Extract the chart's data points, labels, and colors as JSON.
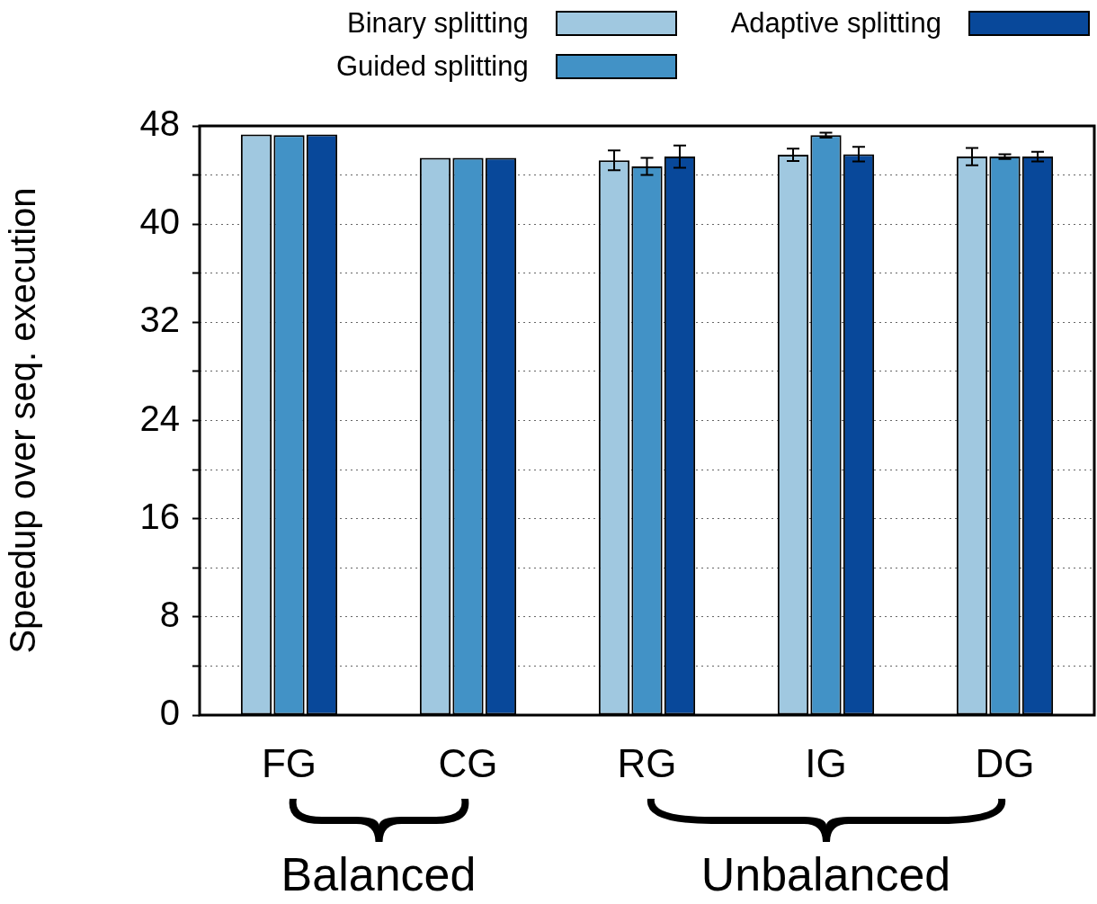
{
  "chart_data": {
    "type": "bar",
    "ylabel": "Speedup over seq. execution",
    "categories": [
      "FG",
      "CG",
      "RG",
      "IG",
      "DG"
    ],
    "series": [
      {
        "name": "Binary splitting",
        "color": "#a0c8e0",
        "values": [
          47.3,
          45.4,
          45.2,
          45.65,
          45.5
        ],
        "errors": [
          null,
          null,
          0.8,
          0.5,
          0.7
        ]
      },
      {
        "name": "Guided splitting",
        "color": "#4292c6",
        "values": [
          47.25,
          45.4,
          44.7,
          47.25,
          45.5
        ],
        "errors": [
          null,
          null,
          0.7,
          0.2,
          0.2
        ]
      },
      {
        "name": "Adaptive splitting",
        "color": "#08489a",
        "values": [
          47.3,
          45.4,
          45.5,
          45.7,
          45.5
        ],
        "errors": [
          null,
          null,
          0.9,
          0.6,
          0.4
        ]
      }
    ],
    "ylim": [
      0,
      48
    ],
    "yticks": [
      0,
      {
        "value": 4,
        "label": null
      },
      8,
      {
        "value": 12,
        "label": null
      },
      16,
      {
        "value": 20,
        "label": null
      },
      24,
      {
        "value": 28,
        "label": null
      },
      32,
      {
        "value": 36,
        "label": null
      },
      40,
      {
        "value": 44,
        "label": null
      },
      48
    ],
    "grid": "y",
    "legend": "top right",
    "annotations": [
      "Balanced",
      "Unbalanced"
    ]
  }
}
